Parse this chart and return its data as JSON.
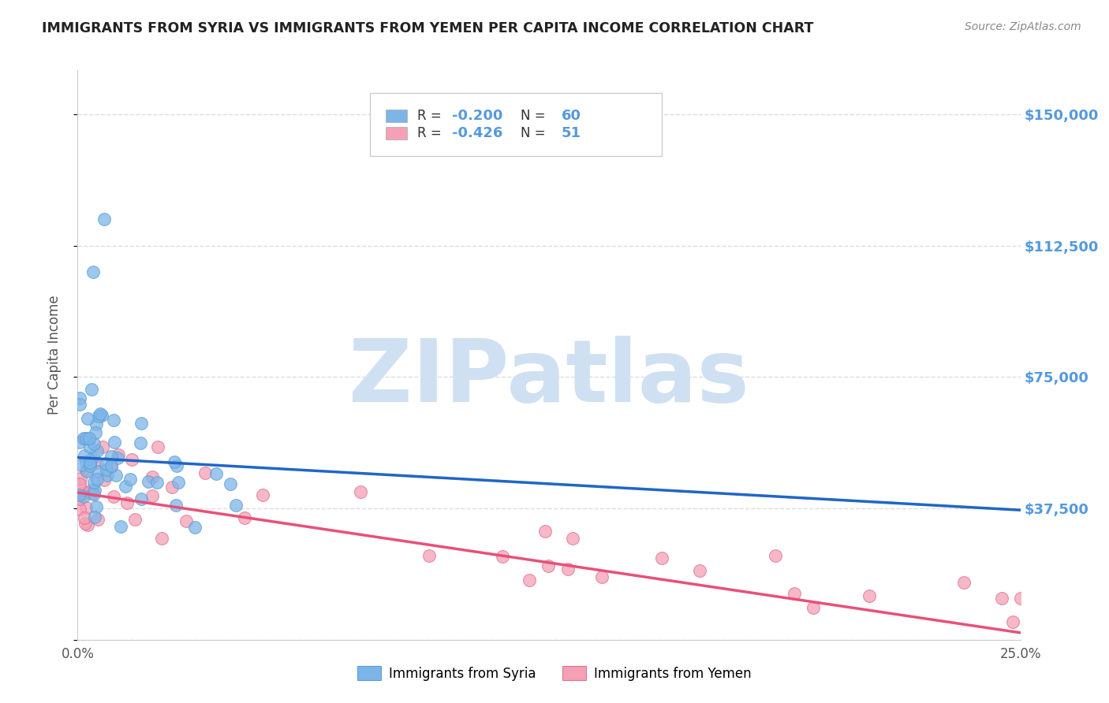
{
  "title": "IMMIGRANTS FROM SYRIA VS IMMIGRANTS FROM YEMEN PER CAPITA INCOME CORRELATION CHART",
  "source": "Source: ZipAtlas.com",
  "ylabel": "Per Capita Income",
  "xlim": [
    0.0,
    0.25
  ],
  "ylim": [
    0,
    162500
  ],
  "yticks": [
    0,
    37500,
    75000,
    112500,
    150000
  ],
  "ytick_labels": [
    "",
    "$37,500",
    "$75,000",
    "$112,500",
    "$150,000"
  ],
  "xticks": [
    0.0,
    0.025,
    0.05,
    0.075,
    0.1,
    0.125,
    0.15,
    0.175,
    0.2,
    0.225,
    0.25
  ],
  "xtick_labels": [
    "0.0%",
    "",
    "",
    "",
    "",
    "",
    "",
    "",
    "",
    "",
    "25.0%"
  ],
  "syria_color": "#7eb5e8",
  "syria_edge_color": "#5a9fd4",
  "yemen_color": "#f4a0b5",
  "yemen_edge_color": "#e07090",
  "trend_syria_color": "#2166c8",
  "trend_yemen_color": "#e8507a",
  "trend_dash_color": "#bbbbbb",
  "background_color": "#ffffff",
  "grid_color": "#dddddd",
  "title_color": "#222222",
  "right_tick_color": "#5599dd",
  "legend_text_color": "#5599dd",
  "watermark_color": "#cfe0f2",
  "watermark_text": "ZIPatlas",
  "syria_R": "-0.200",
  "syria_N": "60",
  "yemen_R": "-0.426",
  "yemen_N": "51"
}
